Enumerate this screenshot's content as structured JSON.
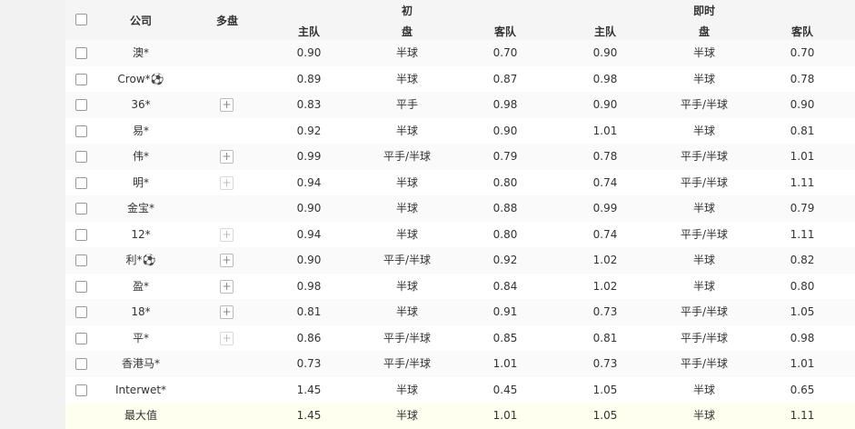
{
  "header": {
    "company": "公司",
    "multi": "多盘",
    "initial": "初",
    "live": "即时",
    "home": "主队",
    "line": "盘",
    "away": "客队"
  },
  "rows": [
    {
      "company": "澳*",
      "multi": "none",
      "ih": "0.90",
      "il": "半球",
      "ia": "0.70",
      "lh": "0.90",
      "ll": "半球",
      "la": "0.70"
    },
    {
      "company": "Crow*⚽",
      "multi": "none",
      "ih": "0.89",
      "il": "半球",
      "ia": "0.87",
      "lh": "0.98",
      "ll": "半球",
      "la": "0.78"
    },
    {
      "company": "36*",
      "multi": "active",
      "ih": "0.83",
      "il": "平手",
      "ia": "0.98",
      "lh": "0.90",
      "ll": "平手/半球",
      "la": "0.90"
    },
    {
      "company": "易*",
      "multi": "none",
      "ih": "0.92",
      "il": "半球",
      "ia": "0.90",
      "lh": "1.01",
      "ll": "半球",
      "la": "0.81"
    },
    {
      "company": "伟*",
      "multi": "active",
      "ih": "0.99",
      "il": "平手/半球",
      "ia": "0.79",
      "lh": "0.78",
      "ll": "平手/半球",
      "la": "1.01"
    },
    {
      "company": "明*",
      "multi": "faded",
      "ih": "0.94",
      "il": "半球",
      "ia": "0.80",
      "lh": "0.74",
      "ll": "平手/半球",
      "la": "1.11"
    },
    {
      "company": "金宝*",
      "multi": "none",
      "ih": "0.90",
      "il": "半球",
      "ia": "0.88",
      "lh": "0.99",
      "ll": "半球",
      "la": "0.79"
    },
    {
      "company": "12*",
      "multi": "faded",
      "ih": "0.94",
      "il": "半球",
      "ia": "0.80",
      "lh": "0.74",
      "ll": "平手/半球",
      "la": "1.11"
    },
    {
      "company": "利*⚽",
      "multi": "active",
      "ih": "0.90",
      "il": "平手/半球",
      "ia": "0.92",
      "lh": "1.02",
      "ll": "半球",
      "la": "0.82"
    },
    {
      "company": "盈*",
      "multi": "active",
      "ih": "0.98",
      "il": "半球",
      "ia": "0.84",
      "lh": "1.02",
      "ll": "半球",
      "la": "0.80"
    },
    {
      "company": "18*",
      "multi": "active",
      "ih": "0.81",
      "il": "半球",
      "ia": "0.91",
      "lh": "0.73",
      "ll": "平手/半球",
      "la": "1.05"
    },
    {
      "company": "平*",
      "multi": "faded",
      "ih": "0.86",
      "il": "平手/半球",
      "ia": "0.85",
      "lh": "0.81",
      "ll": "平手/半球",
      "la": "0.98"
    },
    {
      "company": "香港马*",
      "multi": "none",
      "ih": "0.73",
      "il": "平手/半球",
      "ia": "1.01",
      "lh": "0.73",
      "ll": "平手/半球",
      "la": "1.01"
    },
    {
      "company": "Interwet*",
      "multi": "none",
      "ih": "1.45",
      "il": "半球",
      "ia": "0.45",
      "lh": "1.05",
      "ll": "半球",
      "la": "0.65"
    }
  ],
  "max_row": {
    "company": "最大值",
    "ih": "1.45",
    "il": "半球",
    "ia": "1.01",
    "lh": "1.05",
    "ll": "半球",
    "la": "1.11"
  },
  "plus_symbol": "+"
}
